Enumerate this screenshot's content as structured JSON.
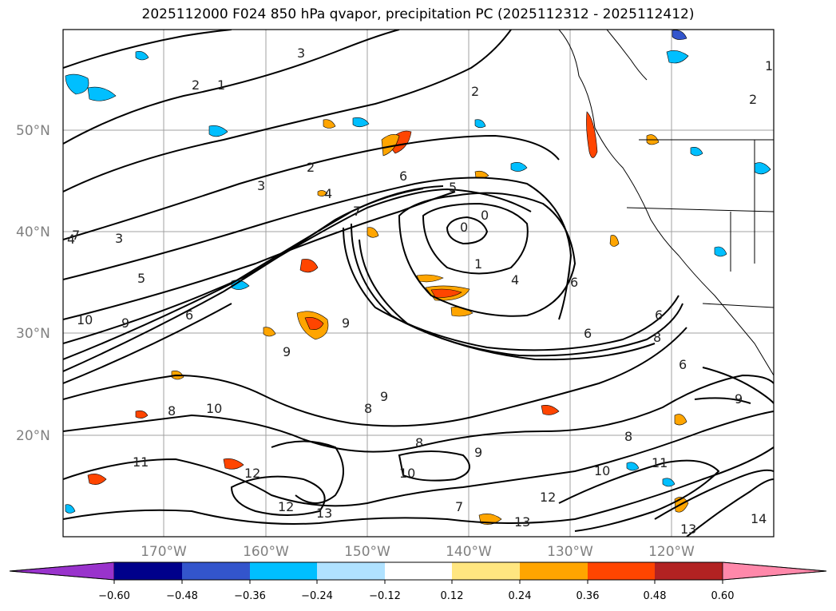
{
  "title": "2025112000 F024 850 hPa qvapor, precipitation PC (2025112312 - 2025112412)",
  "map": {
    "lat_labels": [
      "50°N",
      "40°N",
      "30°N",
      "20°N"
    ],
    "lon_labels": [
      "170°W",
      "160°W",
      "150°W",
      "140°W",
      "130°W",
      "120°W"
    ],
    "contour_labels": [
      "2",
      "1",
      "3",
      "2",
      "1",
      "2",
      "2",
      "3",
      "4",
      "6",
      "5",
      "7",
      "0",
      "0",
      "1",
      "4",
      "6",
      "6",
      "7",
      "5",
      "4",
      "3",
      "6",
      "8",
      "9",
      "9",
      "9",
      "10",
      "9",
      "8",
      "10",
      "11",
      "8",
      "12",
      "12",
      "13",
      "10",
      "11",
      "13",
      "12",
      "13",
      "14",
      "10",
      "7",
      "8",
      "6",
      "6",
      "8",
      "9",
      "9"
    ]
  },
  "colorbar": {
    "tick_labels": [
      "−0.60",
      "−0.48",
      "−0.36",
      "−0.24",
      "−0.12",
      "0.12",
      "0.24",
      "0.36",
      "0.48",
      "0.60"
    ],
    "colors": [
      "#9933cc",
      "#00008b",
      "#3355cc",
      "#00bfff",
      "#b0e2ff",
      "#ffffff",
      "#ffe680",
      "#ffa500",
      "#ff4500",
      "#b22222",
      "#ff88aa"
    ]
  }
}
